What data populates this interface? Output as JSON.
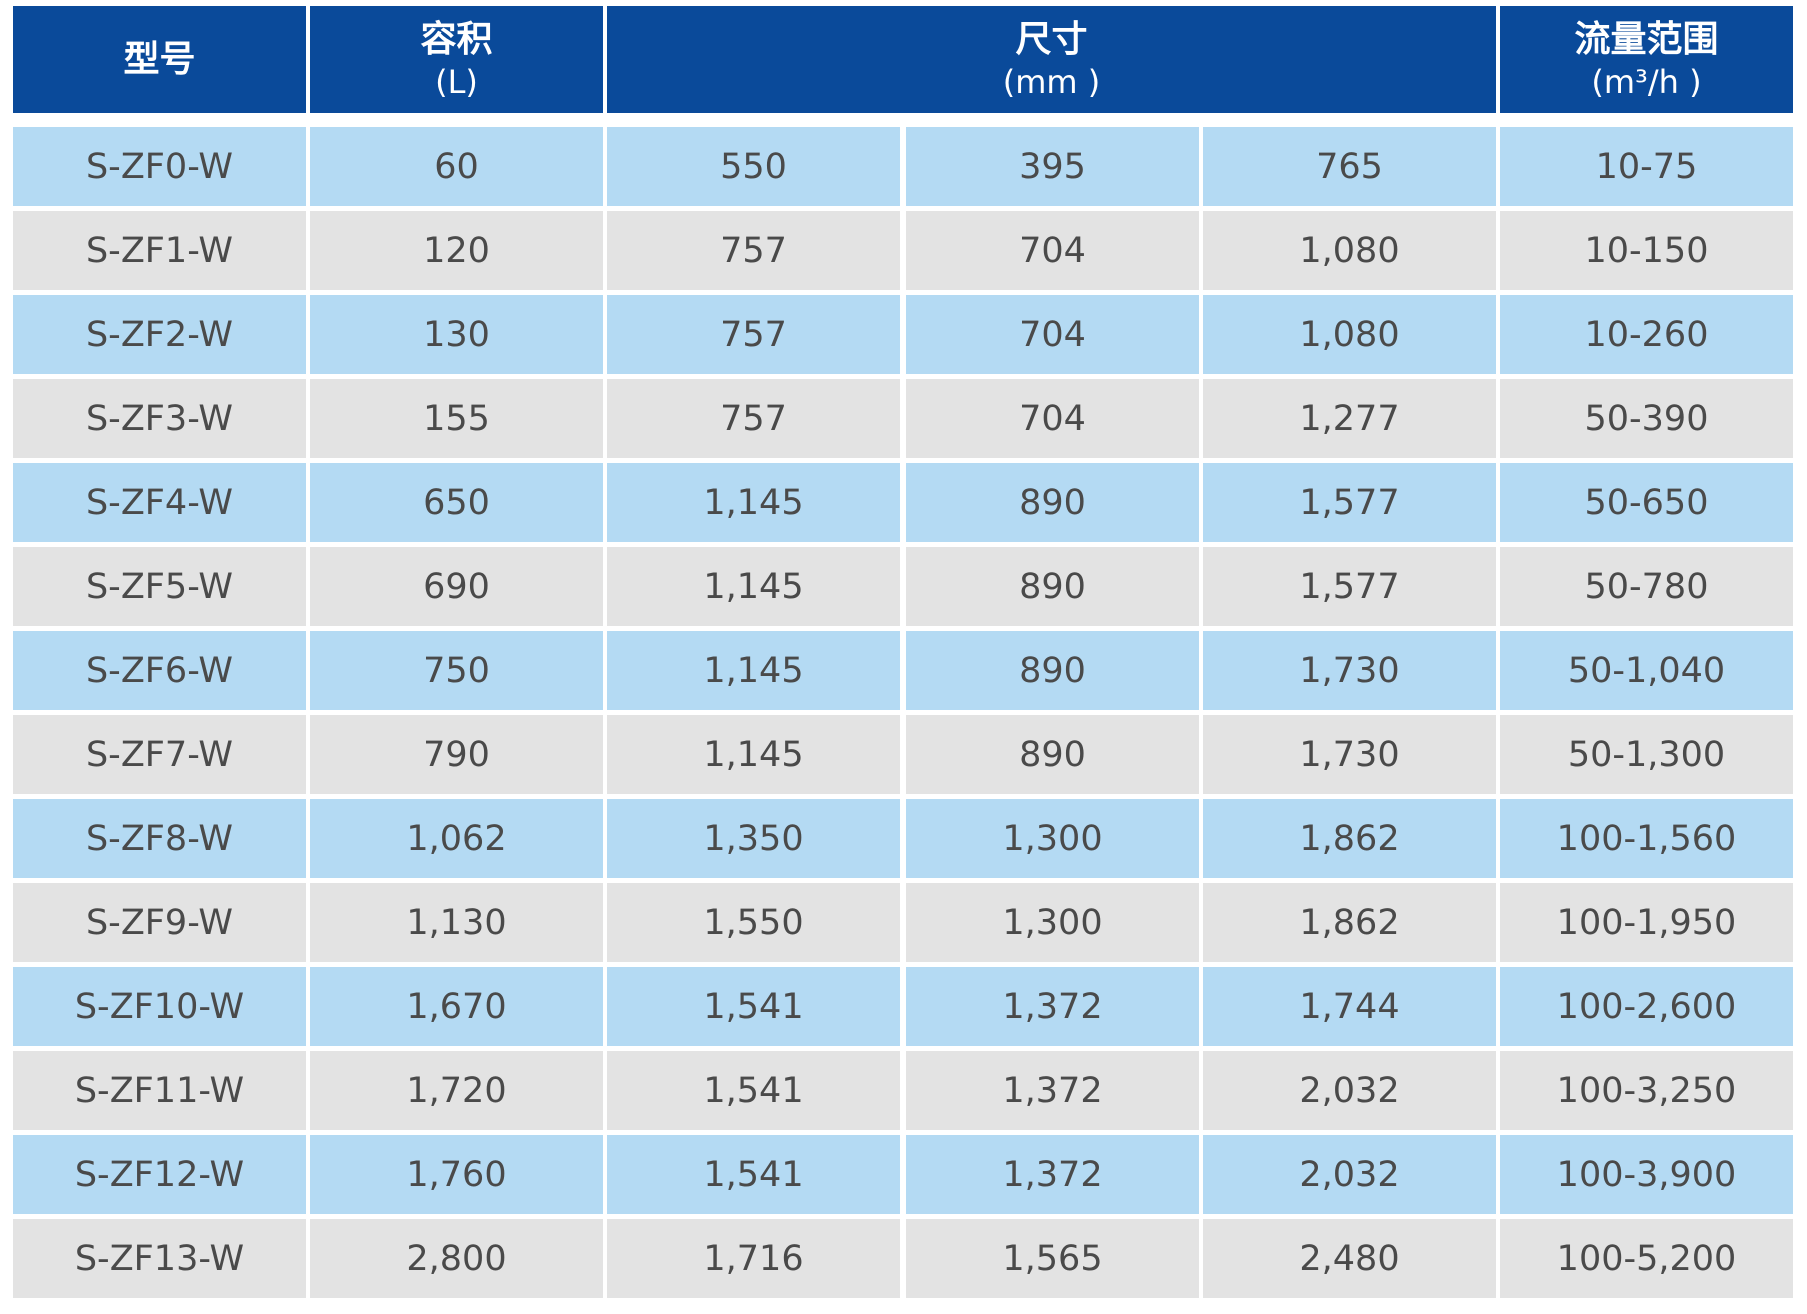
{
  "table": {
    "header": [
      {
        "title": "型号"
      },
      {
        "title": "容积",
        "unit": "(L)"
      },
      {
        "title": "尺寸",
        "unit": "(mm )"
      },
      {
        "title": "流量范围",
        "unit": "(m³/h )"
      }
    ],
    "rows": [
      [
        "S-ZF0-W",
        "60",
        "550",
        "395",
        "765",
        "10-75"
      ],
      [
        "S-ZF1-W",
        "120",
        "757",
        "704",
        "1,080",
        "10-150"
      ],
      [
        "S-ZF2-W",
        "130",
        "757",
        "704",
        "1,080",
        "10-260"
      ],
      [
        "S-ZF3-W",
        "155",
        "757",
        "704",
        "1,277",
        "50-390"
      ],
      [
        "S-ZF4-W",
        "650",
        "1,145",
        "890",
        "1,577",
        "50-650"
      ],
      [
        "S-ZF5-W",
        "690",
        "1,145",
        "890",
        "1,577",
        "50-780"
      ],
      [
        "S-ZF6-W",
        "750",
        "1,145",
        "890",
        "1,730",
        "50-1,040"
      ],
      [
        "S-ZF7-W",
        "790",
        "1,145",
        "890",
        "1,730",
        "50-1,300"
      ],
      [
        "S-ZF8-W",
        "1,062",
        "1,350",
        "1,300",
        "1,862",
        "100-1,560"
      ],
      [
        "S-ZF9-W",
        "1,130",
        "1,550",
        "1,300",
        "1,862",
        "100-1,950"
      ],
      [
        "S-ZF10-W",
        "1,670",
        "1,541",
        "1,372",
        "1,744",
        "100-2,600"
      ],
      [
        "S-ZF11-W",
        "1,720",
        "1,541",
        "1,372",
        "2,032",
        "100-3,250"
      ],
      [
        "S-ZF12-W",
        "1,760",
        "1,541",
        "1,372",
        "2,032",
        "100-3,900"
      ],
      [
        "S-ZF13-W",
        "2,800",
        "1,716",
        "1,565",
        "2,480",
        "100-5,200"
      ]
    ]
  }
}
